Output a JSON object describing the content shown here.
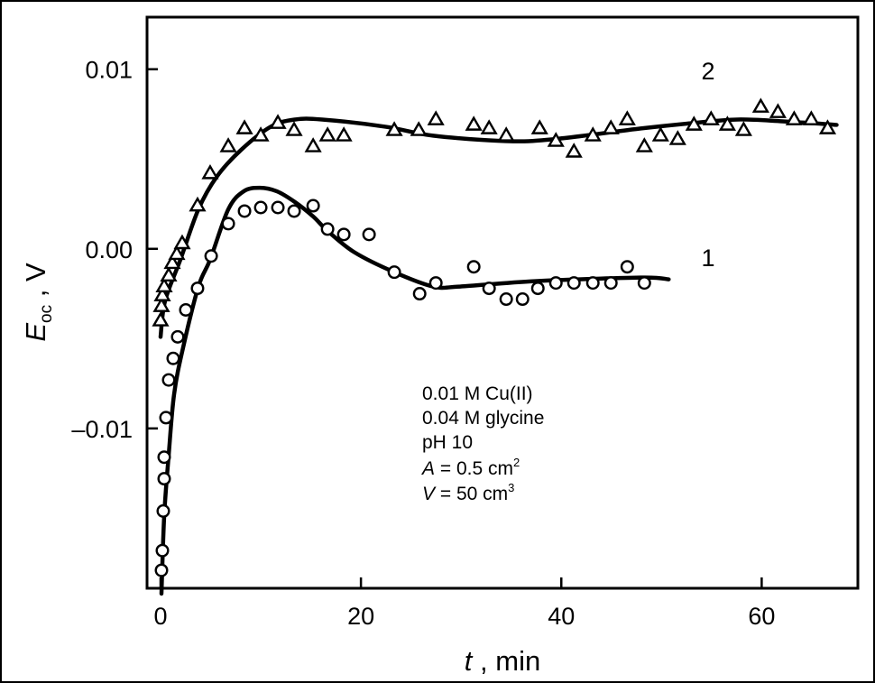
{
  "chart_data": {
    "type": "scatter",
    "title": "",
    "xlabel": {
      "var": "t",
      "sep": " , ",
      "unit": "min"
    },
    "ylabel": {
      "var": "E",
      "sub": "oc",
      "sep": " , ",
      "unit": "V"
    },
    "xlim": [
      -1.35,
      69.6
    ],
    "ylim": [
      -0.0189,
      0.0129
    ],
    "grid": false,
    "xticks": [
      0,
      20,
      40,
      60
    ],
    "xtick_labels": [
      "0",
      "20",
      "40",
      "60"
    ],
    "yticks": [
      0.01,
      0.0,
      -0.01
    ],
    "ytick_labels": [
      "0.01",
      "0.00",
      "–0.01"
    ],
    "annotations": {
      "conditions": [
        "0.01 M Cu(II)",
        "0.04 M glycine",
        "pH 10"
      ],
      "area": {
        "var": "A",
        "text": " = 0.5 cm",
        "sup": "2"
      },
      "volume": {
        "var": "V",
        "text": " = 50 cm",
        "sup": "3"
      }
    },
    "series": [
      {
        "name": "1",
        "marker": "circle",
        "label": "1",
        "x": [
          0.09,
          0.18,
          0.27,
          0.36,
          0.36,
          0.54,
          0.81,
          1.26,
          1.71,
          2.52,
          3.69,
          5.05,
          6.76,
          8.38,
          10.0,
          11.71,
          13.33,
          15.23,
          16.67,
          18.29,
          20.81,
          23.33,
          25.86,
          27.48,
          31.26,
          32.79,
          34.5,
          36.13,
          37.66,
          39.46,
          41.26,
          43.15,
          44.95,
          46.58,
          48.29
        ],
        "y": [
          -0.0179,
          -0.0168,
          -0.0146,
          -0.0128,
          -0.0116,
          -0.0094,
          -0.0073,
          -0.0061,
          -0.0049,
          -0.0034,
          -0.0022,
          -0.0004,
          0.0014,
          0.0021,
          0.0023,
          0.0023,
          0.0021,
          0.0024,
          0.0011,
          0.0008,
          0.0008,
          -0.0013,
          -0.0025,
          -0.0019,
          -0.001,
          -0.0022,
          -0.0028,
          -0.0028,
          -0.0022,
          -0.0019,
          -0.0019,
          -0.0019,
          -0.0019,
          -0.001,
          -0.0019
        ],
        "fit_x": [
          0.09,
          0.36,
          0.81,
          1.35,
          2.25,
          3.78,
          4.95,
          6.76,
          8.29,
          9.9,
          11.62,
          13.42,
          15.23,
          16.67,
          19.37,
          23.33,
          27.21,
          29.9,
          37.39,
          47.93,
          50.72
        ],
        "fit_y": [
          -0.0192,
          -0.0149,
          -0.0115,
          -0.0081,
          -0.0055,
          -0.0021,
          -0.0006,
          0.0022,
          0.0032,
          0.0034,
          0.0032,
          0.0026,
          0.0018,
          0.001,
          -0.0002,
          -0.0013,
          -0.0021,
          -0.0021,
          -0.0018,
          -0.0016,
          -0.0017
        ]
      },
      {
        "name": "2",
        "marker": "triangle",
        "label": "2",
        "x": [
          0,
          0.09,
          0.18,
          0.36,
          0.81,
          1.17,
          1.62,
          2.16,
          3.69,
          4.95,
          6.76,
          8.38,
          10.0,
          11.71,
          13.33,
          15.23,
          16.67,
          18.29,
          23.33,
          25.77,
          27.48,
          31.26,
          32.79,
          34.5,
          37.84,
          39.46,
          41.26,
          43.15,
          44.95,
          46.58,
          48.29,
          49.91,
          51.62,
          53.24,
          54.95,
          56.58,
          58.2,
          59.91,
          61.62,
          63.24,
          64.95,
          66.58
        ],
        "y": [
          -0.004,
          -0.0032,
          -0.0026,
          -0.0021,
          -0.0015,
          -0.0008,
          -0.0003,
          0.0003,
          0.0024,
          0.0042,
          0.0057,
          0.0067,
          0.0063,
          0.007,
          0.0066,
          0.0057,
          0.0063,
          0.0063,
          0.0066,
          0.0066,
          0.0072,
          0.0069,
          0.0067,
          0.0063,
          0.0067,
          0.006,
          0.0054,
          0.0063,
          0.0067,
          0.0072,
          0.0057,
          0.0063,
          0.0061,
          0.0069,
          0.0072,
          0.0069,
          0.0066,
          0.0079,
          0.0076,
          0.0072,
          0.0072,
          0.0067
        ],
        "fit_x": [
          0,
          0.45,
          1.98,
          3.78,
          5.59,
          8.02,
          11.0,
          13.42,
          16.13,
          22.43,
          27.21,
          34.41,
          39.19,
          47.93,
          53.06,
          57.57,
          62.07,
          67.48
        ],
        "fit_y": [
          -0.0049,
          -0.0029,
          -0.0006,
          0.0022,
          0.004,
          0.0055,
          0.0068,
          0.0072,
          0.0072,
          0.0068,
          0.0063,
          0.006,
          0.0061,
          0.0067,
          0.007,
          0.0072,
          0.0071,
          0.0069
        ]
      }
    ]
  }
}
